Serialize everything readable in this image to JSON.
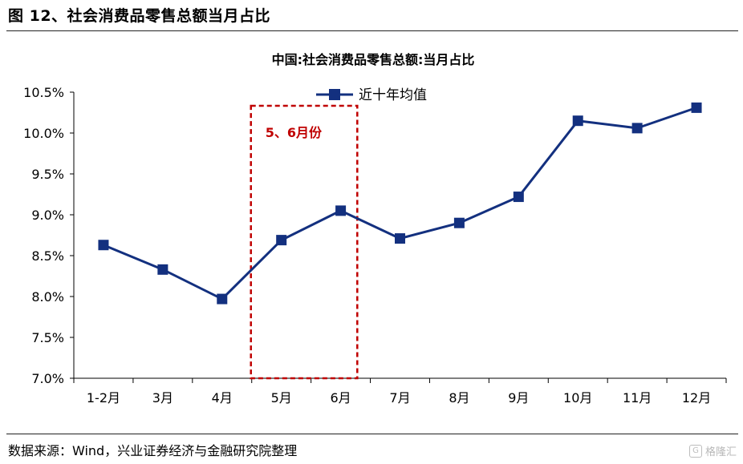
{
  "header": {
    "figure_title": "图 12、社会消费品零售总额当月占比"
  },
  "footer": {
    "source": "数据来源：Wind，兴业证券经济与金融研究院整理",
    "watermark": "格隆汇",
    "watermark_icon": "g-logo-icon"
  },
  "colors": {
    "series": "#13307f",
    "annotation": "#c00000",
    "axis": "#000000"
  },
  "chart_data": {
    "type": "line",
    "title": "中国:社会消费品零售总额:当月占比",
    "xlabel": "",
    "ylabel": "",
    "categories": [
      "1-2月",
      "3月",
      "4月",
      "5月",
      "6月",
      "7月",
      "8月",
      "9月",
      "10月",
      "11月",
      "12月"
    ],
    "series": [
      {
        "name": "近十年均值",
        "values": [
          8.63,
          8.33,
          7.97,
          8.69,
          9.05,
          8.71,
          8.9,
          9.22,
          10.15,
          10.06,
          10.31
        ],
        "marker": "square"
      }
    ],
    "y_ticks": [
      "7.0%",
      "7.5%",
      "8.0%",
      "8.5%",
      "9.0%",
      "9.5%",
      "10.0%",
      "10.5%"
    ],
    "ylim": [
      7.0,
      10.5
    ],
    "y_unit": "%",
    "grid": false,
    "legend_position": "top-center",
    "annotation": {
      "text": "5、6月份",
      "highlight_categories": [
        "5月",
        "6月"
      ],
      "style": "dashed-box"
    }
  }
}
